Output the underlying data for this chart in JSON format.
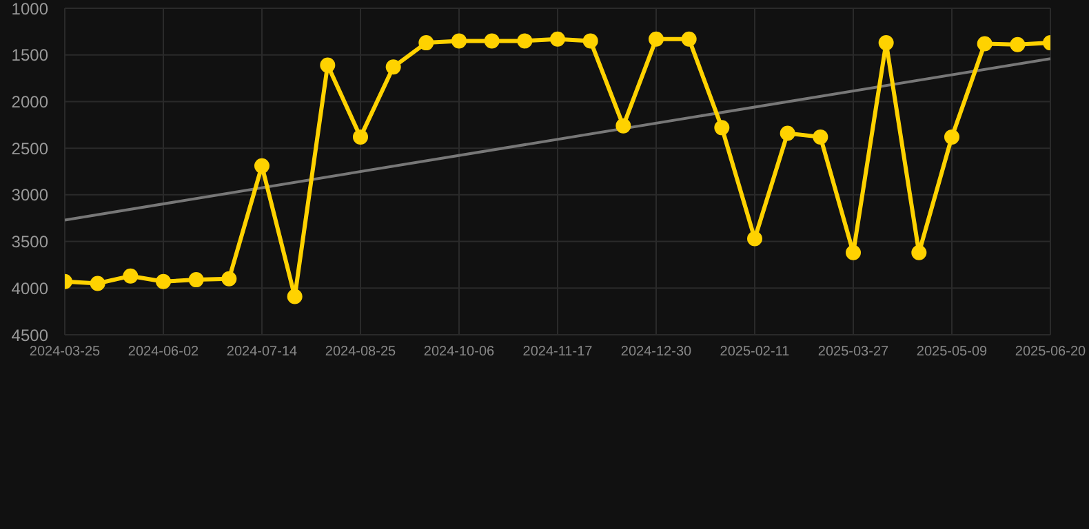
{
  "chart_data": {
    "type": "line",
    "categories": [
      "2024-03-25",
      null,
      null,
      "2024-06-02",
      null,
      null,
      "2024-07-14",
      null,
      null,
      "2024-08-25",
      null,
      null,
      "2024-10-06",
      null,
      null,
      "2024-11-17",
      null,
      null,
      "2024-12-30",
      null,
      null,
      "2025-02-11",
      null,
      null,
      "2025-03-27",
      null,
      null,
      "2025-05-09",
      null,
      null,
      "2025-06-20"
    ],
    "series": [
      {
        "color": "#ffd200",
        "values": [
          3930,
          3950,
          3870,
          3930,
          3910,
          3900,
          2690,
          4090,
          1610,
          2380,
          1630,
          1370,
          1350,
          1350,
          1350,
          1330,
          1350,
          2260,
          1330,
          1330,
          2280,
          3470,
          2340,
          2380,
          3620,
          1370,
          3620,
          2380,
          1380,
          1390,
          1370
        ]
      },
      {
        "type": "line",
        "color": "#777777",
        "marker": "none",
        "values": [
          3270,
          null,
          null,
          null,
          null,
          null,
          null,
          null,
          null,
          null,
          null,
          null,
          null,
          null,
          null,
          null,
          null,
          null,
          null,
          null,
          null,
          null,
          null,
          null,
          null,
          null,
          null,
          null,
          null,
          null,
          1540
        ]
      }
    ],
    "ylim": [
      4500,
      1000
    ],
    "yticks": [
      1000,
      1500,
      2000,
      2500,
      3000,
      3500,
      4000,
      4500
    ],
    "grid": true,
    "marker": "circle",
    "line_style": "solid"
  }
}
